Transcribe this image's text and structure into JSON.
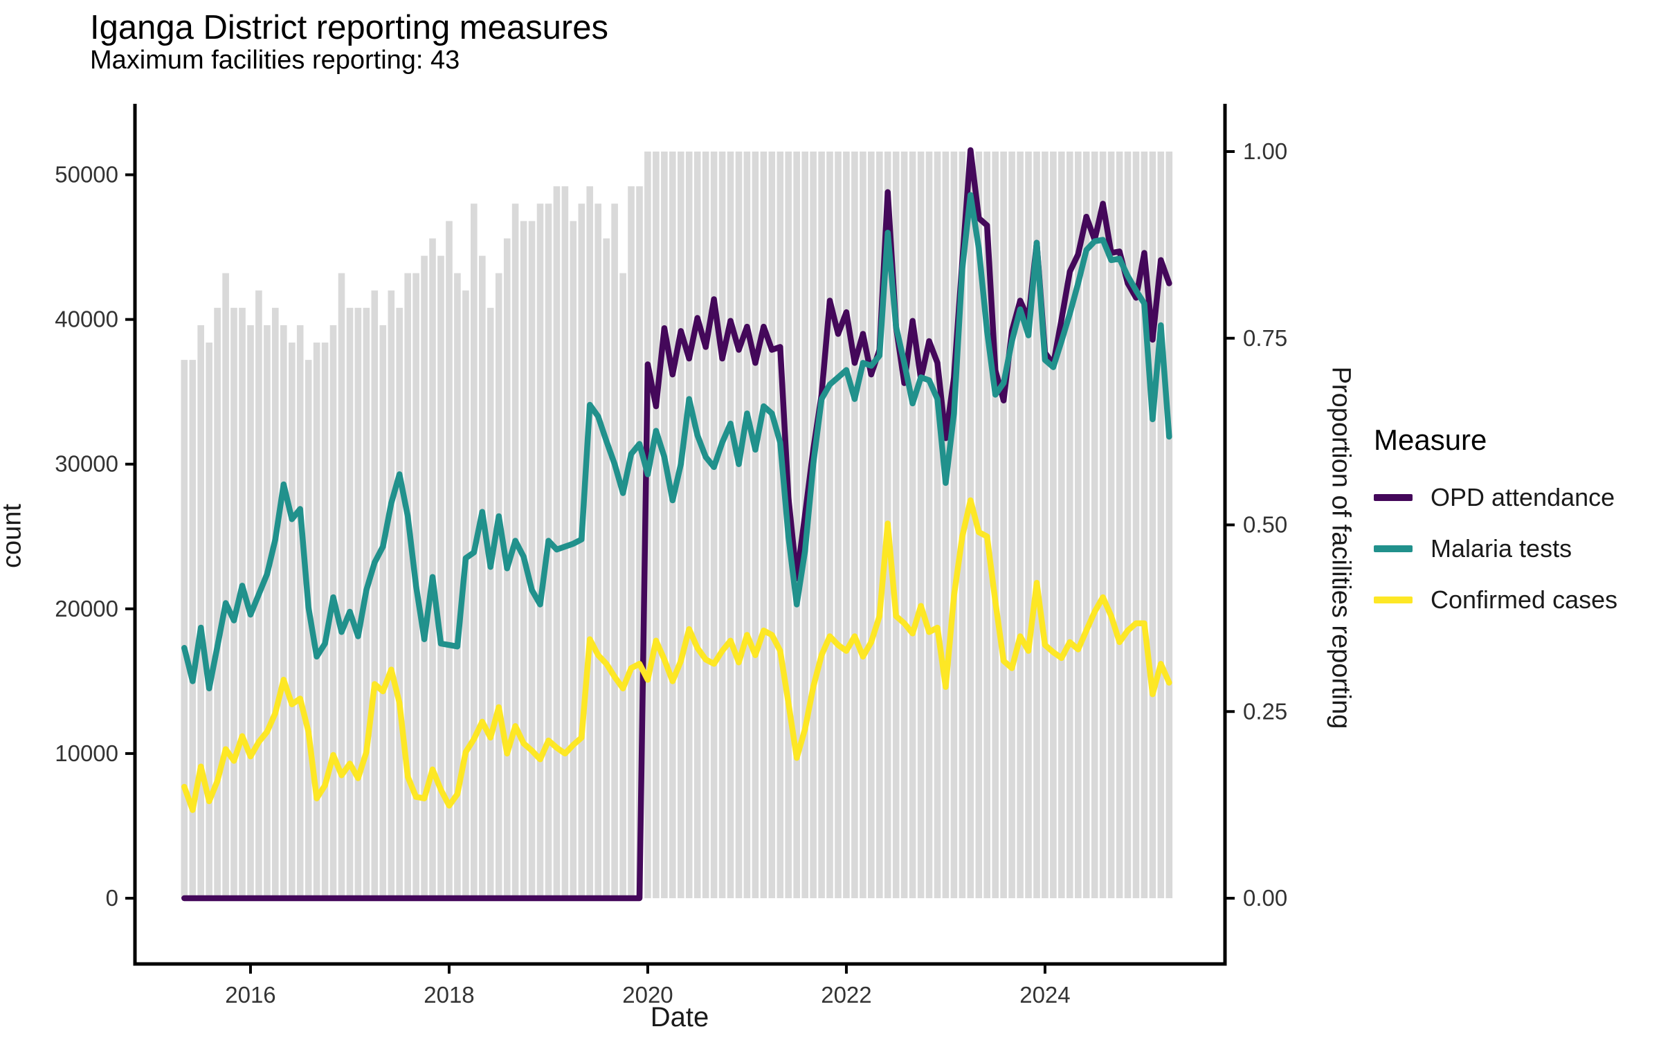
{
  "title": "Iganga District reporting measures",
  "subtitle": "Maximum facilities reporting: 43",
  "axes": {
    "left": {
      "label": "count",
      "ticks": [
        0,
        10000,
        20000,
        30000,
        40000,
        50000
      ]
    },
    "right": {
      "label": "Proportion of facilities reporting",
      "ticks": [
        "0.00",
        "0.25",
        "0.50",
        "0.75",
        "1.00"
      ]
    },
    "x": {
      "label": "Date",
      "ticks": [
        2016,
        2018,
        2020,
        2022,
        2024
      ]
    }
  },
  "legend": {
    "title": "Measure",
    "entries": [
      {
        "label": "OPD attendance",
        "color": "#44085A"
      },
      {
        "label": "Malaria tests",
        "color": "#21918C"
      },
      {
        "label": "Confirmed cases",
        "color": "#FDE725"
      }
    ]
  },
  "colors": {
    "bars": "#D9D9D9",
    "axis": "#000000",
    "tick_text": "#333333",
    "opd": "#44085A",
    "malaria": "#21918C",
    "cases": "#FDE725"
  },
  "chart_data": {
    "type": "composite",
    "subtype": "monthly bars (proportion of facilities reporting, right axis) + 3 count lines (left axis)",
    "x_range": [
      "2015-05",
      "2025-04"
    ],
    "left_ylim": [
      0,
      52000
    ],
    "right_ylim": [
      0.0,
      1.0
    ],
    "grid": "off",
    "legend_position": "right",
    "months": [
      "2015-05",
      "2015-06",
      "2015-07",
      "2015-08",
      "2015-09",
      "2015-10",
      "2015-11",
      "2015-12",
      "2016-01",
      "2016-02",
      "2016-03",
      "2016-04",
      "2016-05",
      "2016-06",
      "2016-07",
      "2016-08",
      "2016-09",
      "2016-10",
      "2016-11",
      "2016-12",
      "2017-01",
      "2017-02",
      "2017-03",
      "2017-04",
      "2017-05",
      "2017-06",
      "2017-07",
      "2017-08",
      "2017-09",
      "2017-10",
      "2017-11",
      "2017-12",
      "2018-01",
      "2018-02",
      "2018-03",
      "2018-04",
      "2018-05",
      "2018-06",
      "2018-07",
      "2018-08",
      "2018-09",
      "2018-10",
      "2018-11",
      "2018-12",
      "2019-01",
      "2019-02",
      "2019-03",
      "2019-04",
      "2019-05",
      "2019-06",
      "2019-07",
      "2019-08",
      "2019-09",
      "2019-10",
      "2019-11",
      "2019-12",
      "2020-01",
      "2020-02",
      "2020-03",
      "2020-04",
      "2020-05",
      "2020-06",
      "2020-07",
      "2020-08",
      "2020-09",
      "2020-10",
      "2020-11",
      "2020-12",
      "2021-01",
      "2021-02",
      "2021-03",
      "2021-04",
      "2021-05",
      "2021-06",
      "2021-07",
      "2021-08",
      "2021-09",
      "2021-10",
      "2021-11",
      "2021-12",
      "2022-01",
      "2022-02",
      "2022-03",
      "2022-04",
      "2022-05",
      "2022-06",
      "2022-07",
      "2022-08",
      "2022-09",
      "2022-10",
      "2022-11",
      "2022-12",
      "2023-01",
      "2023-02",
      "2023-03",
      "2023-04",
      "2023-05",
      "2023-06",
      "2023-07",
      "2023-08",
      "2023-09",
      "2023-10",
      "2023-11",
      "2023-12",
      "2024-01",
      "2024-02",
      "2024-03",
      "2024-04",
      "2024-05",
      "2024-06",
      "2024-07",
      "2024-08",
      "2024-09",
      "2024-10",
      "2024-11",
      "2024-12",
      "2025-01",
      "2025-02",
      "2025-03",
      "2025-04"
    ],
    "bars": {
      "name": "facilities reporting (of max 43)",
      "axis": "right",
      "max": 43,
      "values": [
        31,
        31,
        33,
        32,
        34,
        36,
        34,
        34,
        33,
        35,
        33,
        34,
        33,
        32,
        33,
        31,
        32,
        32,
        33,
        36,
        34,
        34,
        34,
        35,
        33,
        35,
        34,
        36,
        36,
        37,
        38,
        37,
        39,
        36,
        35,
        40,
        37,
        34,
        36,
        38,
        40,
        39,
        39,
        40,
        40,
        41,
        41,
        39,
        40,
        41,
        40,
        38,
        40,
        36,
        41,
        41,
        43,
        43,
        43,
        43,
        43,
        43,
        43,
        43,
        43,
        43,
        43,
        43,
        43,
        43,
        43,
        43,
        43,
        43,
        43,
        43,
        43,
        43,
        43,
        43,
        43,
        43,
        43,
        43,
        43,
        43,
        43,
        43,
        43,
        43,
        43,
        43,
        43,
        43,
        43,
        43,
        43,
        43,
        43,
        43,
        43,
        43,
        43,
        43,
        43,
        43,
        43,
        43,
        43,
        43,
        43,
        43,
        43,
        43,
        43,
        43,
        43,
        43,
        43,
        43
      ]
    },
    "series": [
      {
        "name": "OPD attendance",
        "axis": "left",
        "color": "#44085A",
        "values": [
          0,
          0,
          0,
          0,
          0,
          0,
          0,
          0,
          0,
          0,
          0,
          0,
          0,
          0,
          0,
          0,
          0,
          0,
          0,
          0,
          0,
          0,
          0,
          0,
          0,
          0,
          0,
          0,
          0,
          0,
          0,
          0,
          0,
          0,
          0,
          0,
          0,
          0,
          0,
          0,
          0,
          0,
          0,
          0,
          0,
          0,
          0,
          0,
          0,
          0,
          0,
          0,
          0,
          0,
          0,
          0,
          36900,
          34000,
          39400,
          36200,
          39200,
          37300,
          40100,
          38100,
          41400,
          37300,
          39900,
          37900,
          39500,
          37000,
          39500,
          37900,
          38100,
          27700,
          22100,
          26500,
          31000,
          34800,
          41300,
          39000,
          40500,
          37000,
          39000,
          36200,
          37900,
          48800,
          39500,
          35600,
          39900,
          35900,
          38500,
          37000,
          31800,
          36000,
          44000,
          51700,
          47000,
          46500,
          36500,
          34400,
          39200,
          41300,
          40000,
          45300,
          37700,
          36900,
          40000,
          43300,
          44500,
          47100,
          45500,
          48000,
          44600,
          44700,
          42500,
          41500,
          44600,
          38600,
          44100,
          42500
        ]
      },
      {
        "name": "Malaria tests",
        "axis": "left",
        "color": "#21918C",
        "values": [
          17300,
          15000,
          18700,
          14500,
          17400,
          20400,
          19200,
          21600,
          19600,
          21000,
          22400,
          24800,
          28600,
          26200,
          26900,
          20100,
          16700,
          17600,
          20800,
          18400,
          19800,
          18100,
          21300,
          23200,
          24300,
          27300,
          29300,
          26400,
          21600,
          17900,
          22200,
          17600,
          17500,
          17400,
          23500,
          23900,
          26700,
          22900,
          26400,
          22800,
          24700,
          23600,
          21300,
          20300,
          24700,
          24100,
          24300,
          24500,
          24800,
          34100,
          33300,
          31600,
          30000,
          28000,
          30700,
          31400,
          29300,
          32300,
          30500,
          27500,
          30000,
          34500,
          32000,
          30500,
          29800,
          31500,
          32800,
          30000,
          33500,
          31000,
          34000,
          33500,
          31500,
          25000,
          20300,
          24000,
          30000,
          34500,
          35500,
          36000,
          36500,
          34500,
          37000,
          36800,
          37500,
          46000,
          39500,
          37000,
          34200,
          36000,
          35800,
          34500,
          28700,
          33500,
          43500,
          48600,
          44900,
          39200,
          34800,
          35600,
          38500,
          40700,
          38900,
          45300,
          37200,
          36700,
          38500,
          40400,
          42500,
          44800,
          45400,
          45500,
          44100,
          44200,
          43000,
          42000,
          41100,
          33100,
          39600,
          31900
        ]
      },
      {
        "name": "Confirmed cases",
        "axis": "left",
        "color": "#FDE725",
        "values": [
          7700,
          6100,
          9100,
          6700,
          8100,
          10300,
          9500,
          11200,
          9800,
          10800,
          11500,
          12800,
          15100,
          13400,
          13800,
          11500,
          6900,
          7800,
          9900,
          8500,
          9300,
          8300,
          10100,
          14800,
          14300,
          15800,
          13500,
          8400,
          7000,
          6900,
          8900,
          7500,
          6400,
          7200,
          10100,
          11000,
          12200,
          11100,
          13200,
          10000,
          11900,
          10700,
          10200,
          9600,
          10900,
          10400,
          10000,
          10600,
          11100,
          17900,
          16800,
          16200,
          15300,
          14500,
          15900,
          16200,
          15100,
          17800,
          16500,
          15000,
          16400,
          18600,
          17300,
          16500,
          16200,
          17100,
          17800,
          16300,
          18200,
          16800,
          18500,
          18200,
          17100,
          13500,
          9700,
          11700,
          14600,
          16800,
          18100,
          17500,
          17100,
          18100,
          16700,
          17700,
          19500,
          25900,
          19500,
          19000,
          18300,
          20200,
          18400,
          18700,
          14600,
          20900,
          25000,
          27500,
          25300,
          25000,
          20500,
          16400,
          15900,
          18100,
          17100,
          21800,
          17500,
          17000,
          16600,
          17700,
          17200,
          18500,
          19800,
          20800,
          19500,
          17700,
          18500,
          19000,
          19000,
          14100,
          16200,
          14900
        ]
      }
    ]
  }
}
